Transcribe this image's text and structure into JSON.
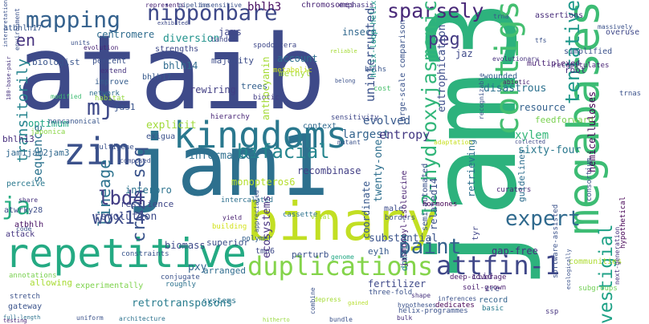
{
  "cloud": {
    "words": [
      {
        "text": "ataib",
        "color": "#3e4a89",
        "rotated": false
      },
      {
        "text": "jam3",
        "color": "#2db27d",
        "rotated": true
      },
      {
        "text": "jam1",
        "color": "#2d708e",
        "rotated": false
      },
      {
        "text": "binary",
        "color": "#c2df23",
        "rotated": false
      },
      {
        "text": "kingdoms",
        "color": "#2a788e",
        "rotated": false
      },
      {
        "text": "megabases",
        "color": "#3dbc74",
        "rotated": true
      },
      {
        "text": "contigs",
        "color": "#44bf70",
        "rotated": true
      },
      {
        "text": "repetitive",
        "color": "#24aa83",
        "rotated": false
      },
      {
        "text": "zim",
        "color": "#3b518b",
        "rotated": false
      },
      {
        "text": "nipponbare",
        "color": "#3e4989",
        "rotated": false
      },
      {
        "text": "duplications",
        "color": "#84d44b",
        "rotated": false
      },
      {
        "text": "attfin-1",
        "color": "#3f4788",
        "rotated": false
      },
      {
        "text": "sparsely",
        "color": "#482878",
        "rotated": false
      },
      {
        "text": "mapping",
        "color": "#34618d",
        "rotated": false
      },
      {
        "text": "bifacial",
        "color": "#25858e",
        "rotated": false
      },
      {
        "text": "expert",
        "color": "#306a8e",
        "rotated": false
      },
      {
        "text": "12-hydroxyjasmonic",
        "color": "#32b67a",
        "rotated": true
      },
      {
        "text": "paint",
        "color": "#34618d",
        "rotated": false
      },
      {
        "text": "tentative",
        "color": "#1f988b",
        "rotated": true
      },
      {
        "text": "vestigial",
        "color": "#1fa287",
        "rotated": true
      },
      {
        "text": "cry2h-seq",
        "color": "#3a538b",
        "rotated": true
      },
      {
        "text": "lineage",
        "color": "#2c728e",
        "rotated": true
      },
      {
        "text": "lbd4",
        "color": "#433e85",
        "rotated": false
      },
      {
        "text": "wox14",
        "color": "#3e4c8a",
        "rotated": false
      },
      {
        "text": "ja",
        "color": "#26ad81",
        "rotated": false
      },
      {
        "text": "peg",
        "color": "#443a83",
        "rotated": false
      },
      {
        "text": "transitorily",
        "color": "#25848e",
        "rotated": true
      },
      {
        "text": "mj",
        "color": "#3e4989",
        "rotated": false
      },
      {
        "text": "en",
        "color": "#46327e",
        "rotated": false
      },
      {
        "text": "bhlh3",
        "color": "#470e61",
        "rotated": false
      },
      {
        "text": "chromosomes",
        "color": "#482475",
        "rotated": false
      },
      {
        "text": "emphasis",
        "color": "#46337f",
        "rotated": false
      },
      {
        "text": "atbhlh17",
        "color": "#38598c",
        "rotated": false
      },
      {
        "text": "centromere",
        "color": "#2f6c8e",
        "rotated": false
      },
      {
        "text": "assertions",
        "color": "#472c7a",
        "rotated": false
      },
      {
        "text": "overuse",
        "color": "#3f4889",
        "rotated": false
      },
      {
        "text": "simplified",
        "color": "#3b528b",
        "rotated": false
      },
      {
        "text": "diversion",
        "color": "#20928c",
        "rotated": false
      },
      {
        "text": "jams",
        "color": "#404688",
        "rotated": false
      },
      {
        "text": "tandem",
        "color": "#3f4889",
        "rotated": false
      },
      {
        "text": "insect",
        "color": "#31688e",
        "rotated": false
      },
      {
        "text": "jaz",
        "color": "#3e4989",
        "rotated": false
      },
      {
        "text": "root",
        "color": "#472a7a",
        "rotated": false
      },
      {
        "text": "account",
        "color": "#2e6e8e",
        "rotated": false
      },
      {
        "text": "biologist",
        "color": "#39558c",
        "rotated": false
      },
      {
        "text": "percent",
        "color": "#3b518b",
        "rotated": false
      },
      {
        "text": "extend",
        "color": "#46327e",
        "rotated": false
      },
      {
        "text": "improve",
        "color": "#365d8d",
        "rotated": false
      },
      {
        "text": "bhlh14",
        "color": "#2f6b8e",
        "rotated": false
      },
      {
        "text": "bhlh17",
        "color": "#375a8c",
        "rotated": false
      },
      {
        "text": "majority",
        "color": "#3d4d8a",
        "rotated": false
      },
      {
        "text": "methyl",
        "color": "#a2da37",
        "rotated": false
      },
      {
        "text": "rewiring",
        "color": "#423f85",
        "rotated": false
      },
      {
        "text": "trees",
        "color": "#34608d",
        "rotated": false
      },
      {
        "text": "biotic",
        "color": "#433e85",
        "rotated": false
      },
      {
        "text": "multiplexed",
        "color": "#482173",
        "rotated": false
      },
      {
        "text": "wounded",
        "color": "#34618d",
        "rotated": false
      },
      {
        "text": "disastrous",
        "color": "#2c718e",
        "rotated": false
      },
      {
        "text": "resource",
        "color": "#34618d",
        "rotated": false
      },
      {
        "text": "feedforward",
        "color": "#7ad151",
        "rotated": false
      },
      {
        "text": "jas1",
        "color": "#3a548c",
        "rotated": false
      },
      {
        "text": "optimum",
        "color": "#21a685",
        "rotated": false
      },
      {
        "text": "sequence",
        "color": "#2c738e",
        "rotated": true
      },
      {
        "text": "bhlh13",
        "color": "#472f7d",
        "rotated": false
      },
      {
        "text": "explicit",
        "color": "#a0da39",
        "rotated": false
      },
      {
        "text": "exigua",
        "color": "#3b528b",
        "rotated": false
      },
      {
        "text": "context",
        "color": "#30698e",
        "rotated": false
      },
      {
        "text": "evolved",
        "color": "#38598c",
        "rotated": false
      },
      {
        "text": "largest",
        "color": "#33638d",
        "rotated": false
      },
      {
        "text": "xylem",
        "color": "#35b779",
        "rotated": false
      },
      {
        "text": "jam1jam2jam3",
        "color": "#31688e",
        "rotated": false
      },
      {
        "text": "informatics",
        "color": "#2e6f8e",
        "rotated": false
      },
      {
        "text": "monopteros6",
        "color": "#b5de2b",
        "rotated": false
      },
      {
        "text": "recombinase",
        "color": "#423f85",
        "rotated": false
      },
      {
        "text": "sixty-four",
        "color": "#2a788e",
        "rotated": false
      },
      {
        "text": "interpro",
        "color": "#2c738e",
        "rotated": false
      },
      {
        "text": "resilience",
        "color": "#3f4788",
        "rotated": false
      },
      {
        "text": "intercalated",
        "color": "#2d708e",
        "rotated": false
      },
      {
        "text": "atwrky28",
        "color": "#3d4e8a",
        "rotated": false
      },
      {
        "text": "revolution",
        "color": "#3e4c8a",
        "rotated": false
      },
      {
        "text": "atbhlh",
        "color": "#471063",
        "rotated": false
      },
      {
        "text": "attack",
        "color": "#453581",
        "rotated": false
      },
      {
        "text": "borders",
        "color": "#3b528b",
        "rotated": false
      },
      {
        "text": "male",
        "color": "#3d4d8a",
        "rotated": false
      },
      {
        "text": "biomass",
        "color": "#3e4a89",
        "rotated": false
      },
      {
        "text": "superior",
        "color": "#3c508b",
        "rotated": false
      },
      {
        "text": "substantial",
        "color": "#3a538b",
        "rotated": false
      },
      {
        "text": "tmo6",
        "color": "#3e4a89",
        "rotated": false
      },
      {
        "text": "ey1h",
        "color": "#375b8d",
        "rotated": false
      },
      {
        "text": "pxy",
        "color": "#32658e",
        "rotated": false
      },
      {
        "text": "arranged",
        "color": "#2f6c8e",
        "rotated": false
      },
      {
        "text": "experimentally",
        "color": "#7fd34e",
        "rotated": false
      },
      {
        "text": "allowing",
        "color": "#a8db34",
        "rotated": false
      },
      {
        "text": "retrotransposons",
        "color": "#287c8e",
        "rotated": false
      },
      {
        "text": "systems",
        "color": "#2b758e",
        "rotated": false
      },
      {
        "text": "perturb",
        "color": "#3b528b",
        "rotated": false
      },
      {
        "text": "fertilizer",
        "color": "#3e4989",
        "rotated": false
      },
      {
        "text": "record",
        "color": "#33638d",
        "rotated": false
      },
      {
        "text": "basic",
        "color": "#297a8e",
        "rotated": false
      },
      {
        "text": "communities",
        "color": "#addc30",
        "rotated": false
      },
      {
        "text": "gap-free",
        "color": "#46307e",
        "rotated": false
      },
      {
        "text": "iiid",
        "color": "#46327e",
        "rotated": false
      },
      {
        "text": "cre",
        "color": "#3d4e8a",
        "rotated": false
      },
      {
        "text": "subgroups",
        "color": "#73d056",
        "rotated": false
      },
      {
        "text": "dedicates",
        "color": "#440154",
        "rotated": false
      },
      {
        "text": "gateway",
        "color": "#3a538b",
        "rotated": false
      },
      {
        "text": "ssp",
        "color": "#46337f",
        "rotated": false
      },
      {
        "text": "curators",
        "color": "#482475",
        "rotated": false
      },
      {
        "text": "deep-coverage",
        "color": "#481769",
        "rotated": false
      },
      {
        "text": "soil-grown",
        "color": "#481c6e",
        "rotated": false
      },
      {
        "text": "entropy",
        "color": "#443983",
        "rotated": false
      },
      {
        "text": "uninterrupted",
        "color": "#3b528b",
        "rotated": true
      },
      {
        "text": "eutrophication",
        "color": "#3d4d8a",
        "rotated": true
      },
      {
        "text": "twenty-one",
        "color": "#2e6f8e",
        "rotated": true
      },
      {
        "text": "domain4",
        "color": "#25848e",
        "rotated": true
      },
      {
        "text": "coordinate",
        "color": "#38588c",
        "rotated": true
      },
      {
        "text": "ecosystems",
        "color": "#46307e",
        "rotated": true
      },
      {
        "text": "anthocyanin",
        "color": "#a5db36",
        "rotated": true
      },
      {
        "text": "related14",
        "color": "#3b528b",
        "rotated": true
      },
      {
        "text": "retrieving",
        "color": "#2d708e",
        "rotated": true
      },
      {
        "text": "guidelines",
        "color": "#2e6e8e",
        "rotated": true
      },
      {
        "text": "hemicelluloses",
        "color": "#440154",
        "rotated": true
      },
      {
        "text": "semi-automated",
        "color": "#3b528b",
        "rotated": true
      },
      {
        "text": "tyr",
        "color": "#404588",
        "rotated": true
      },
      {
        "text": "jasmonoyl-isoleucine",
        "color": "#482071",
        "rotated": true
      },
      {
        "text": "large-scale comparison",
        "color": "#3a538b",
        "rotated": true
      },
      {
        "text": "helix-loop-helix",
        "color": "#1f988b",
        "rotated": true
      },
      {
        "text": "bhlhs",
        "color": "#39558c",
        "rotated": false
      },
      {
        "text": "cost",
        "color": "#4ac16d",
        "rotated": false
      },
      {
        "text": "perceive",
        "color": "#2a788e",
        "rotated": false
      },
      {
        "text": "japonica",
        "color": "#8bd646",
        "rotated": false
      },
      {
        "text": "noncanonical",
        "color": "#39568c",
        "rotated": false
      },
      {
        "text": "hierarchy",
        "color": "#482576",
        "rotated": false
      },
      {
        "text": "sensitivity",
        "color": "#3f4788",
        "rotated": false
      },
      {
        "text": "strengths",
        "color": "#3e4989",
        "rotated": false
      },
      {
        "text": "spodoptera",
        "color": "#3f4889",
        "rotated": false
      },
      {
        "text": "metabolic",
        "color": "#c8e020",
        "rotated": false
      },
      {
        "text": "network",
        "color": "#2e6e8e",
        "rotated": false
      },
      {
        "text": "habitat",
        "color": "#93d741",
        "rotated": false
      },
      {
        "text": "modified",
        "color": "#3fbc73",
        "rotated": false
      },
      {
        "text": "multigene",
        "color": "#3b528b",
        "rotated": false
      },
      {
        "text": "composed",
        "color": "#3d4e8a",
        "rotated": false
      },
      {
        "text": "constraints",
        "color": "#39558c",
        "rotated": false
      },
      {
        "text": "cassette",
        "color": "#2c728e",
        "rotated": false
      },
      {
        "text": "vital",
        "color": "#a5db36",
        "rotated": false
      },
      {
        "text": "yield",
        "color": "#482071",
        "rotated": false
      },
      {
        "text": "building",
        "color": "#d2e21b",
        "rotated": false
      },
      {
        "text": "polymer",
        "color": "#35608d",
        "rotated": false
      },
      {
        "text": "genome",
        "color": "#22a884",
        "rotated": false
      },
      {
        "text": "conjugate",
        "color": "#3b528b",
        "rotated": false
      },
      {
        "text": "roughly",
        "color": "#2c728e",
        "rotated": false
      },
      {
        "text": "annotations",
        "color": "#7ad151",
        "rotated": false
      },
      {
        "text": "stretch",
        "color": "#3b528b",
        "rotated": false
      },
      {
        "text": "full-length",
        "color": "#2c728e",
        "rotated": false
      },
      {
        "text": "testing",
        "color": "#482475",
        "rotated": false
      },
      {
        "text": "uniform",
        "color": "#3b528b",
        "rotated": false
      },
      {
        "text": "architecture",
        "color": "#2c728e",
        "rotated": false
      },
      {
        "text": "hitherto",
        "color": "#98d83e",
        "rotated": false
      },
      {
        "text": "bundle",
        "color": "#3b528b",
        "rotated": false
      },
      {
        "text": "bulk",
        "color": "#46327e",
        "rotated": false
      },
      {
        "text": "hypotheses",
        "color": "#3b528b",
        "rotated": false
      },
      {
        "text": "inferences",
        "color": "#3b528b",
        "rotated": false
      },
      {
        "text": "shape",
        "color": "#46327e",
        "rotated": false
      },
      {
        "text": "depress",
        "color": "#a5db36",
        "rotated": false
      },
      {
        "text": "gained",
        "color": "#b5de2b",
        "rotated": false
      },
      {
        "text": "exhibited",
        "color": "#3e4a89",
        "rotated": false
      },
      {
        "text": "represents",
        "color": "#482475",
        "rotated": false
      },
      {
        "text": "pipeline",
        "color": "#3b528b",
        "rotated": false
      },
      {
        "text": "insensitive",
        "color": "#3b528b",
        "rotated": false
      },
      {
        "text": "trna",
        "color": "#3b528b",
        "rotated": false
      },
      {
        "text": "evolutionary",
        "color": "#46327e",
        "rotated": false
      },
      {
        "text": "tfs",
        "color": "#3b528b",
        "rotated": false
      },
      {
        "text": "recapitulates",
        "color": "#482475",
        "rotated": false
      },
      {
        "text": "abiotic",
        "color": "#482071",
        "rotated": false
      },
      {
        "text": "trnas",
        "color": "#3b528b",
        "rotated": false
      },
      {
        "text": "massively",
        "color": "#3b528b",
        "rotated": false
      },
      {
        "text": "adaptation",
        "color": "#c8e020",
        "rotated": false
      },
      {
        "text": "collected",
        "color": "#3e4a89",
        "rotated": false
      },
      {
        "text": "recognizable",
        "color": "#3b528b",
        "rotated": true
      },
      {
        "text": "mutant",
        "color": "#3b528b",
        "rotated": false
      },
      {
        "text": "hormones",
        "color": "#440154",
        "rotated": false
      },
      {
        "text": "consortium",
        "color": "#3b528b",
        "rotated": true
      },
      {
        "text": "software-assisted",
        "color": "#3b528b",
        "rotated": true
      },
      {
        "text": "next-generation",
        "color": "#46327e",
        "rotated": true
      },
      {
        "text": "hypothetical",
        "color": "#440154",
        "rotated": true
      },
      {
        "text": "ecologically",
        "color": "#3b528b",
        "rotated": true
      },
      {
        "text": "appreciated",
        "color": "#3b528b",
        "rotated": true
      },
      {
        "text": "combine",
        "color": "#3b528b",
        "rotated": true
      },
      {
        "text": "180-base-pair",
        "color": "#46327e",
        "rotated": true
      },
      {
        "text": "environment",
        "color": "#3b528b",
        "rotated": true
      },
      {
        "text": "interpretation",
        "color": "#3b528b",
        "rotated": true
      },
      {
        "text": "share",
        "color": "#46327e",
        "rotated": false
      },
      {
        "text": "code",
        "color": "#3b528b",
        "rotated": false
      },
      {
        "text": "units",
        "color": "#3b528b",
        "rotated": false
      },
      {
        "text": "evolution",
        "color": "#482475",
        "rotated": false
      },
      {
        "text": "reliable",
        "color": "#a5db36",
        "rotated": false
      },
      {
        "text": "belong",
        "color": "#3b528b",
        "rotated": false
      },
      {
        "text": "three-fold",
        "color": "#3b528b",
        "rotated": false
      },
      {
        "text": "helix-programmes",
        "color": "#3b528b",
        "rotated": false
      }
    ]
  }
}
